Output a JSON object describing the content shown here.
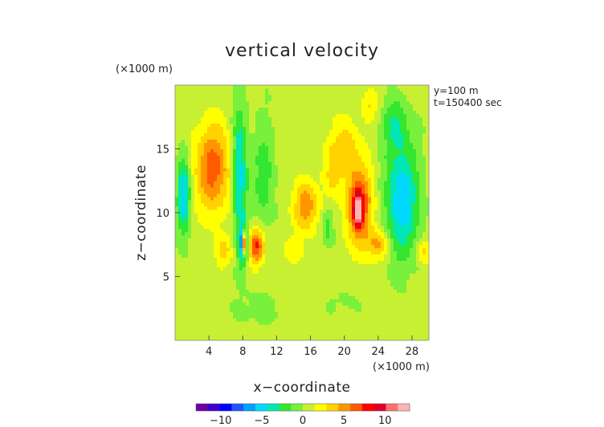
{
  "chart_data": {
    "type": "heatmap",
    "title": "vertical velocity",
    "xlabel": "x−coordinate",
    "ylabel": "z−coordinate",
    "x_unit_label": "(×1000 m)",
    "y_unit_label": "(×1000 m)",
    "info_lines": [
      "y=100 m",
      "t=150400 sec"
    ],
    "xlim": [
      0,
      30
    ],
    "ylim": [
      0,
      20
    ],
    "x_ticks": [
      4,
      8,
      12,
      16,
      20,
      24,
      28
    ],
    "x_tick_labels": [
      "4",
      "8",
      "12",
      "16",
      "20",
      "24",
      "28"
    ],
    "y_ticks": [
      5,
      10,
      15
    ],
    "y_tick_labels": [
      "5",
      "10",
      "15"
    ],
    "colorbar": {
      "range": [
        -13,
        13
      ],
      "ticks": [
        -10,
        -5,
        0,
        5,
        10
      ],
      "tick_labels": [
        "−10",
        "−5",
        "0",
        "5",
        "10"
      ],
      "colors": [
        "#6a00a8",
        "#3c00d2",
        "#0000ff",
        "#1e55ff",
        "#00a0ff",
        "#00d8ff",
        "#00e6b4",
        "#32e632",
        "#78f03c",
        "#c8f032",
        "#ffff00",
        "#ffd200",
        "#ff9600",
        "#ff5a00",
        "#ff0000",
        "#dc0028",
        "#ff6e6e",
        "#ffb4b4"
      ]
    },
    "grid": false,
    "background_value": 0.5,
    "features": [
      {
        "x": 4.5,
        "z": 13.5,
        "sx": 2.2,
        "sz": 3.5,
        "amp": 6
      },
      {
        "x": 5.7,
        "z": 7.0,
        "sx": 1.0,
        "sz": 1.2,
        "amp": 3
      },
      {
        "x": 7.6,
        "z": 13.0,
        "sx": 0.9,
        "sz": 5.0,
        "amp": -6
      },
      {
        "x": 8.0,
        "z": 7.5,
        "sx": 0.5,
        "sz": 1.6,
        "amp": -6
      },
      {
        "x": 8.2,
        "z": 7.6,
        "sx": 0.14,
        "sz": 0.9,
        "amp": 12
      },
      {
        "x": 9.6,
        "z": 7.4,
        "sx": 0.9,
        "sz": 1.4,
        "amp": 7
      },
      {
        "x": 10.5,
        "z": 13.0,
        "sx": 1.2,
        "sz": 4.0,
        "amp": -3
      },
      {
        "x": 1.0,
        "z": 11.5,
        "sx": 0.8,
        "sz": 3.0,
        "amp": -6
      },
      {
        "x": 15.5,
        "z": 10.5,
        "sx": 1.5,
        "sz": 2.0,
        "amp": 5
      },
      {
        "x": 14.0,
        "z": 7.0,
        "sx": 1.2,
        "sz": 1.0,
        "amp": 2
      },
      {
        "x": 18.0,
        "z": 9.0,
        "sx": 0.7,
        "sz": 1.5,
        "amp": -3
      },
      {
        "x": 20.0,
        "z": 15.0,
        "sx": 2.0,
        "sz": 2.5,
        "amp": 3
      },
      {
        "x": 23.0,
        "z": 18.5,
        "sx": 1.0,
        "sz": 1.2,
        "amp": 2.5
      },
      {
        "x": 21.8,
        "z": 10.5,
        "sx": 1.6,
        "sz": 3.0,
        "amp": 7
      },
      {
        "x": 21.6,
        "z": 10.3,
        "sx": 0.5,
        "sz": 1.3,
        "amp": 7
      },
      {
        "x": 24.0,
        "z": 7.5,
        "sx": 1.4,
        "sz": 1.2,
        "amp": 4
      },
      {
        "x": 26.8,
        "z": 11.0,
        "sx": 2.0,
        "sz": 4.5,
        "amp": -6
      },
      {
        "x": 26.0,
        "z": 17.0,
        "sx": 1.5,
        "sz": 2.0,
        "amp": -3
      },
      {
        "x": 29.5,
        "z": 7.0,
        "sx": 0.8,
        "sz": 1.0,
        "amp": 3
      },
      {
        "x": 10.0,
        "z": 2.5,
        "sx": 3.0,
        "sz": 1.5,
        "amp": -1
      },
      {
        "x": 20.0,
        "z": 3.0,
        "sx": 2.0,
        "sz": 1.0,
        "amp": -0.8
      },
      {
        "x": 18.5,
        "z": 13.0,
        "sx": 1.0,
        "sz": 2.0,
        "amp": 2
      }
    ]
  }
}
